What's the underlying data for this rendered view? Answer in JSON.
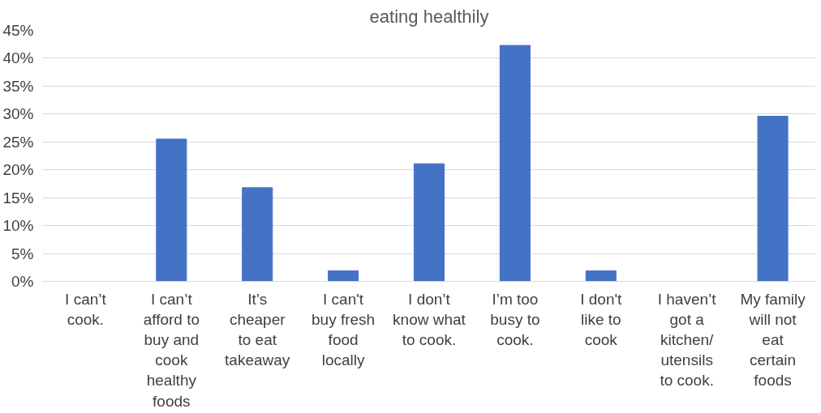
{
  "chart_data": {
    "type": "bar",
    "title": "eating healthily",
    "categories": [
      "I can’t cook.",
      "I can’t afford to buy and cook healthy foods",
      "It’s cheaper to eat takeaway",
      "I can't buy fresh food locally",
      "I don’t know what to cook.",
      "I’m too busy to cook.",
      "I don't like to cook",
      "I haven’t got a kitchen/ utensils to cook.",
      "My family will not eat certain foods"
    ],
    "values": [
      0,
      25.5,
      16.8,
      1.9,
      21.1,
      42.3,
      1.9,
      0,
      29.6
    ],
    "color": "#4472c4",
    "ylim": [
      0,
      45
    ],
    "yticks": [
      {
        "value": 0,
        "label": "0%"
      },
      {
        "value": 5,
        "label": "5%"
      },
      {
        "value": 10,
        "label": "10%"
      },
      {
        "value": 15,
        "label": "15%"
      },
      {
        "value": 20,
        "label": "20%"
      },
      {
        "value": 25,
        "label": "25%"
      },
      {
        "value": 30,
        "label": "30%"
      },
      {
        "value": 35,
        "label": "35%"
      },
      {
        "value": 40,
        "label": "40%"
      },
      {
        "value": 45,
        "label": "45%"
      }
    ],
    "grid": "y"
  }
}
